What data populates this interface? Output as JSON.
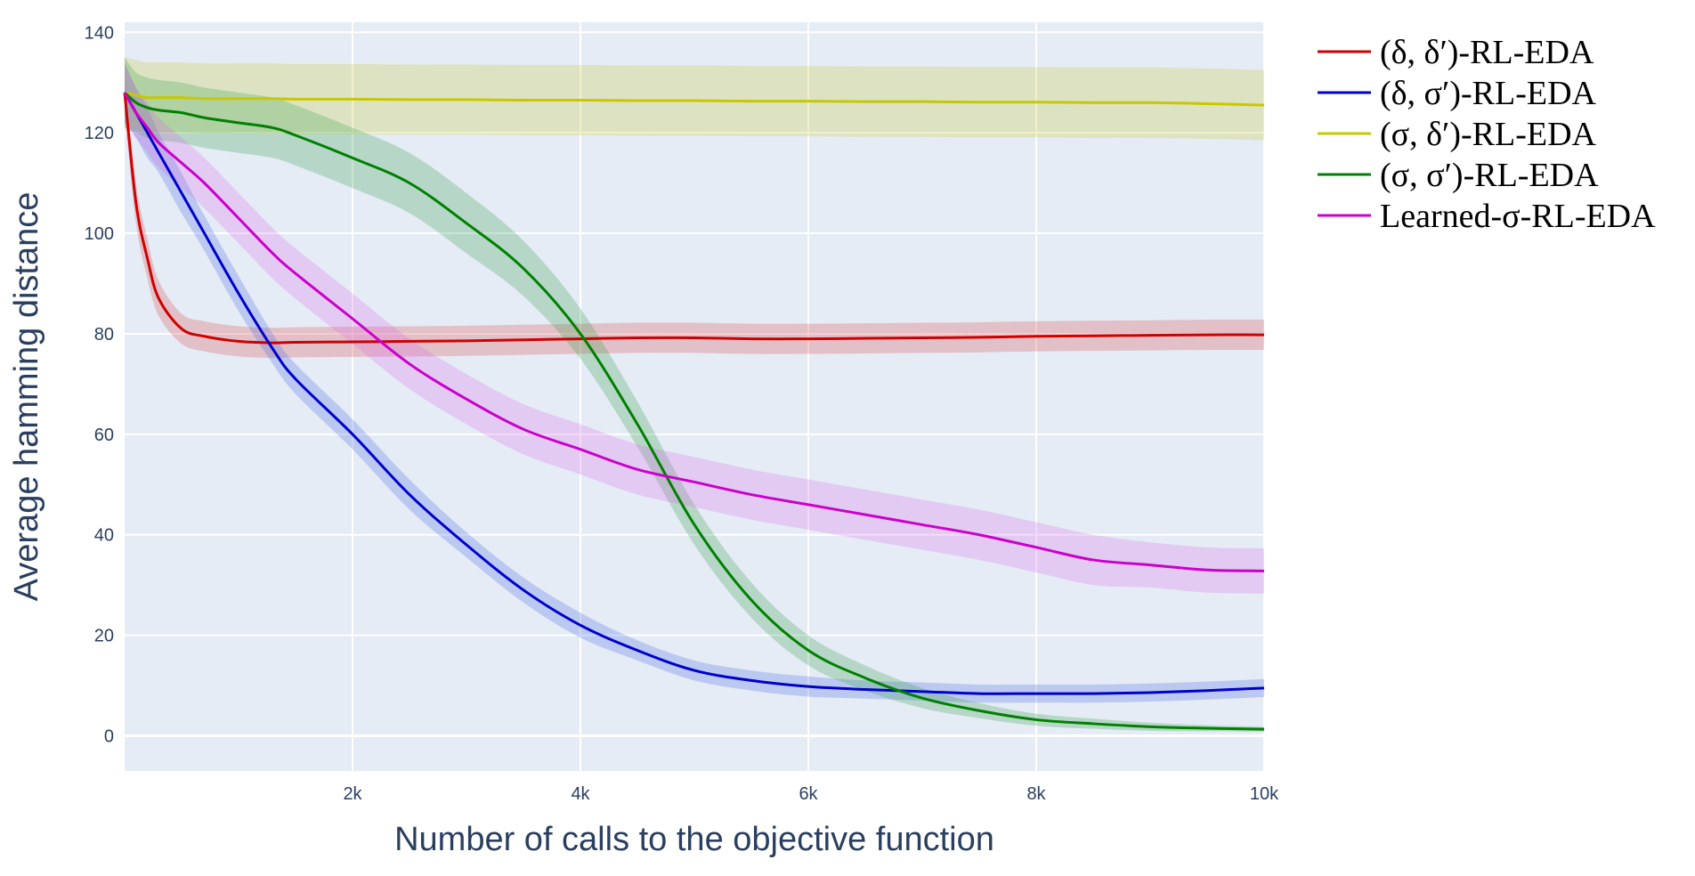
{
  "chart_data": {
    "type": "line",
    "xlabel": "Number of calls to the objective function",
    "ylabel": "Average hamming distance",
    "xlim": [
      0,
      10000
    ],
    "ylim": [
      -7,
      142
    ],
    "x_ticks": [
      2000,
      4000,
      6000,
      8000,
      10000
    ],
    "x_tick_labels": [
      "2k",
      "4k",
      "6k",
      "8k",
      "10k"
    ],
    "y_ticks": [
      0,
      20,
      40,
      60,
      80,
      100,
      120,
      140
    ],
    "y_tick_labels": [
      "0",
      "20",
      "40",
      "60",
      "80",
      "100",
      "120",
      "140"
    ],
    "grid": true,
    "legend_position": "right",
    "x": [
      0,
      100,
      200,
      300,
      500,
      700,
      1000,
      1300,
      1500,
      2000,
      2500,
      3000,
      3500,
      4000,
      4500,
      5000,
      5500,
      6000,
      6500,
      7000,
      7500,
      8000,
      8500,
      9000,
      9500,
      10000
    ],
    "series": [
      {
        "name": "(δ, δ′)-RL-EDA",
        "color": "#d00000",
        "band_color": "rgba(220,60,60,0.25)",
        "values": [
          128,
          106,
          95,
          87,
          81,
          79.5,
          78.5,
          78.2,
          78.3,
          78.4,
          78.5,
          78.6,
          78.8,
          79,
          79.2,
          79.2,
          79,
          79,
          79.1,
          79.2,
          79.3,
          79.5,
          79.6,
          79.7,
          79.8,
          79.8
        ],
        "band": [
          4,
          4,
          4,
          3.5,
          3,
          3,
          3,
          3,
          3,
          3,
          3,
          3,
          3,
          3,
          3,
          3,
          3,
          3,
          3,
          3,
          3,
          3,
          3,
          3,
          3,
          3
        ]
      },
      {
        "name": "(δ, σ′)-RL-EDA",
        "color": "#0000cc",
        "band_color": "rgba(80,110,230,0.28)",
        "values": [
          128,
          124,
          120,
          116,
          108,
          100,
          88,
          77,
          71,
          60,
          48,
          38,
          29,
          22,
          17,
          13,
          11,
          9.8,
          9.2,
          8.8,
          8.4,
          8.4,
          8.4,
          8.6,
          9,
          9.5
        ],
        "band": [
          6,
          5,
          5,
          4,
          4,
          3.5,
          3.5,
          3,
          3,
          3,
          3,
          2.5,
          2.5,
          2.5,
          2,
          2,
          2,
          2,
          1.8,
          1.8,
          1.8,
          1.8,
          1.8,
          1.8,
          1.8,
          1.8
        ]
      },
      {
        "name": "(σ, δ′)-RL-EDA",
        "color": "#c8c800",
        "band_color": "rgba(200,200,40,0.25)",
        "values": [
          128,
          127.5,
          127,
          127,
          127,
          126.8,
          126.8,
          126.8,
          126.7,
          126.7,
          126.6,
          126.6,
          126.5,
          126.5,
          126.4,
          126.4,
          126.3,
          126.3,
          126.2,
          126.2,
          126.1,
          126.1,
          126,
          126,
          125.8,
          125.5
        ],
        "band": [
          7,
          7,
          7,
          7,
          7,
          7,
          7,
          7,
          7,
          7,
          7,
          7,
          7,
          7,
          7,
          7,
          7,
          7,
          7,
          7,
          7,
          7,
          7,
          7,
          7,
          7
        ]
      },
      {
        "name": "(σ, σ′)-RL-EDA",
        "color": "#008000",
        "band_color": "rgba(60,160,80,0.28)",
        "values": [
          128,
          126,
          125,
          124.5,
          124,
          123,
          122,
          121,
          119.5,
          115,
          110,
          102,
          93,
          80,
          62,
          42,
          27,
          17,
          11.5,
          7.5,
          5,
          3.2,
          2.4,
          1.8,
          1.5,
          1.3
        ],
        "band": [
          7,
          6,
          6,
          6,
          6,
          6,
          6,
          6,
          6,
          6,
          6,
          6,
          5.5,
          5,
          4.5,
          4,
          3.5,
          3,
          2.5,
          2,
          1.5,
          1.2,
          1,
          0.8,
          0.6,
          0.5
        ]
      },
      {
        "name": "Learned-σ-RL-EDA",
        "color": "#cc00cc",
        "band_color": "rgba(220,100,230,0.25)",
        "values": [
          128,
          124,
          121,
          118,
          114,
          110,
          103,
          96,
          92,
          83,
          74,
          67,
          61,
          57,
          53,
          50.5,
          48,
          46,
          44,
          42,
          40,
          37.5,
          35,
          34,
          33,
          32.8
        ],
        "band": [
          6,
          5,
          5,
          5,
          5,
          5,
          5,
          5,
          5,
          5,
          5,
          5,
          5,
          5,
          5,
          5,
          5,
          5,
          5,
          5,
          5,
          5,
          5,
          4.5,
          4.5,
          4.5
        ]
      }
    ]
  }
}
